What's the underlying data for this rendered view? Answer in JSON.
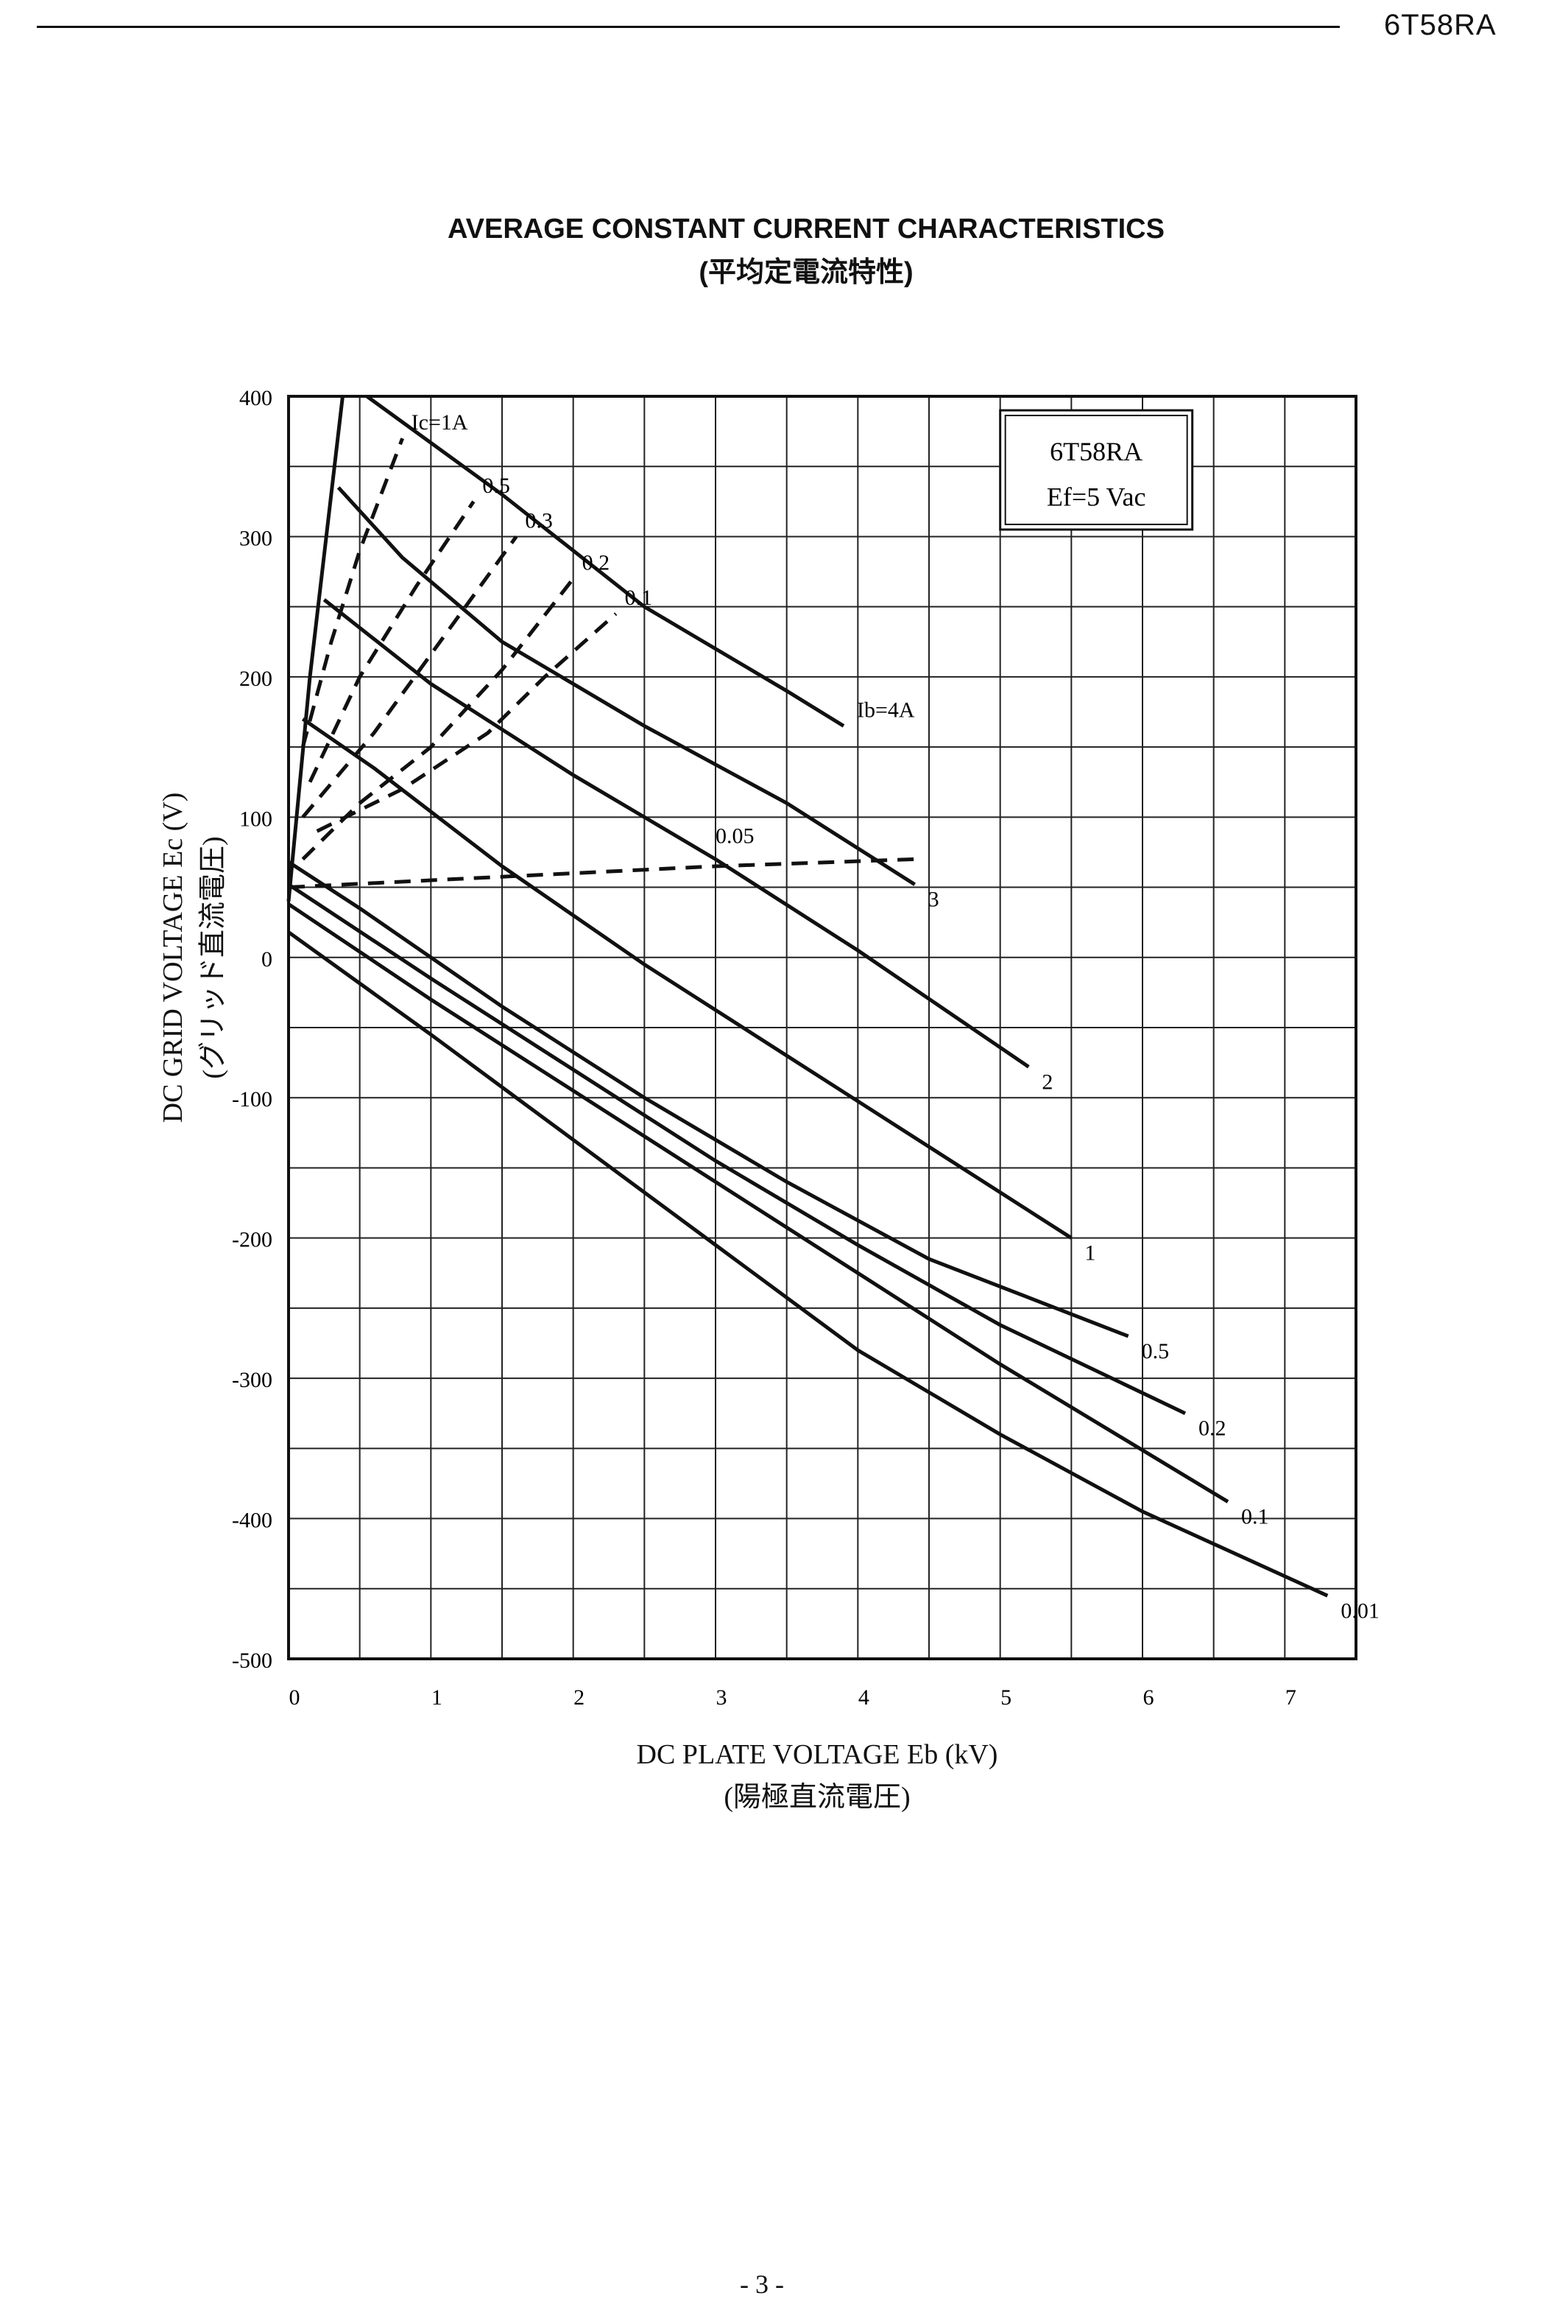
{
  "header": {
    "doc_id": "6T58RA"
  },
  "page_number": "- 3 -",
  "chart_data": {
    "type": "line",
    "title": "AVERAGE CONSTANT CURRENT CHARACTERISTICS",
    "subtitle": "(平均定電流特性)",
    "xlabel": "DC PLATE VOLTAGE   Eb (kV)",
    "xlabel_jp": "(陽極直流電圧)",
    "ylabel": "DC GRID VOLTAGE   Ec (V)",
    "ylabel_jp": "(グリッド直流電圧)",
    "xlim": [
      0,
      7.5
    ],
    "ylim": [
      -500,
      400
    ],
    "x_ticks": [
      0,
      1,
      2,
      3,
      4,
      5,
      6,
      7
    ],
    "y_ticks": [
      400,
      300,
      200,
      100,
      0,
      -100,
      -200,
      -300,
      -400,
      -500
    ],
    "grid": true,
    "legend_box": {
      "tube": "6T58RA",
      "filament": "Ef=5 Vac"
    },
    "plate_current_series": [
      {
        "name": "Ib=4A",
        "label": "Ib=4A",
        "points": [
          [
            0.55,
            400
          ],
          [
            1.5,
            330
          ],
          [
            2.5,
            250
          ],
          [
            3.5,
            190
          ],
          [
            3.9,
            165
          ]
        ]
      },
      {
        "name": "3",
        "label": "3",
        "points": [
          [
            0.35,
            335
          ],
          [
            0.8,
            285
          ],
          [
            1.5,
            225
          ],
          [
            2.5,
            165
          ],
          [
            3.5,
            110
          ],
          [
            4.4,
            52
          ]
        ]
      },
      {
        "name": "2",
        "label": "2",
        "points": [
          [
            0.25,
            255
          ],
          [
            1.0,
            195
          ],
          [
            2.0,
            130
          ],
          [
            3.0,
            70
          ],
          [
            4.0,
            5
          ],
          [
            5.2,
            -78
          ]
        ]
      },
      {
        "name": "1",
        "label": "1",
        "points": [
          [
            0.1,
            170
          ],
          [
            0.6,
            135
          ],
          [
            1.5,
            65
          ],
          [
            2.5,
            -5
          ],
          [
            3.5,
            -70
          ],
          [
            4.5,
            -135
          ],
          [
            5.5,
            -200
          ]
        ]
      },
      {
        "name": "0.5",
        "label": "0.5",
        "points": [
          [
            0.0,
            68
          ],
          [
            0.5,
            35
          ],
          [
            1.5,
            -35
          ],
          [
            2.5,
            -100
          ],
          [
            3.5,
            -160
          ],
          [
            4.5,
            -215
          ],
          [
            5.9,
            -270
          ]
        ]
      },
      {
        "name": "0.2",
        "label": "0.2",
        "points": [
          [
            0.0,
            52
          ],
          [
            1.0,
            -15
          ],
          [
            2.0,
            -80
          ],
          [
            3.0,
            -145
          ],
          [
            4.0,
            -205
          ],
          [
            5.0,
            -262
          ],
          [
            6.3,
            -325
          ]
        ]
      },
      {
        "name": "0.1",
        "label": "0.1",
        "points": [
          [
            0.0,
            38
          ],
          [
            1.0,
            -30
          ],
          [
            2.0,
            -95
          ],
          [
            3.0,
            -160
          ],
          [
            4.0,
            -225
          ],
          [
            5.0,
            -290
          ],
          [
            6.6,
            -388
          ]
        ]
      },
      {
        "name": "0.01",
        "label": "0.01",
        "points": [
          [
            0.0,
            18
          ],
          [
            1.0,
            -55
          ],
          [
            2.0,
            -130
          ],
          [
            3.0,
            -205
          ],
          [
            4.0,
            -280
          ],
          [
            5.0,
            -340
          ],
          [
            6.0,
            -395
          ],
          [
            7.3,
            -455
          ]
        ]
      }
    ],
    "grid_current_series": [
      {
        "name": "Ic=1A",
        "label": "Ic=1A",
        "points": [
          [
            0.1,
            150
          ],
          [
            0.3,
            225
          ],
          [
            0.5,
            290
          ],
          [
            0.8,
            370
          ]
        ]
      },
      {
        "name": "0.5",
        "label": "0.5",
        "points": [
          [
            0.15,
            125
          ],
          [
            0.5,
            200
          ],
          [
            0.9,
            265
          ],
          [
            1.3,
            325
          ]
        ]
      },
      {
        "name": "0.3",
        "label": "0.3",
        "points": [
          [
            0.1,
            100
          ],
          [
            0.6,
            160
          ],
          [
            1.1,
            230
          ],
          [
            1.6,
            300
          ]
        ]
      },
      {
        "name": "0.2",
        "label": "0.2",
        "points": [
          [
            0.1,
            70
          ],
          [
            0.5,
            110
          ],
          [
            1.0,
            150
          ],
          [
            1.5,
            205
          ],
          [
            2.0,
            270
          ]
        ]
      },
      {
        "name": "0.1",
        "label": "0.1",
        "points": [
          [
            0.2,
            90
          ],
          [
            0.8,
            120
          ],
          [
            1.4,
            160
          ],
          [
            1.8,
            200
          ],
          [
            2.3,
            245
          ]
        ]
      },
      {
        "name": "0.05",
        "label": "0.05",
        "points": [
          [
            0.0,
            50
          ],
          [
            1.0,
            55
          ],
          [
            2.0,
            60
          ],
          [
            3.0,
            65
          ],
          [
            4.4,
            70
          ]
        ]
      }
    ]
  }
}
